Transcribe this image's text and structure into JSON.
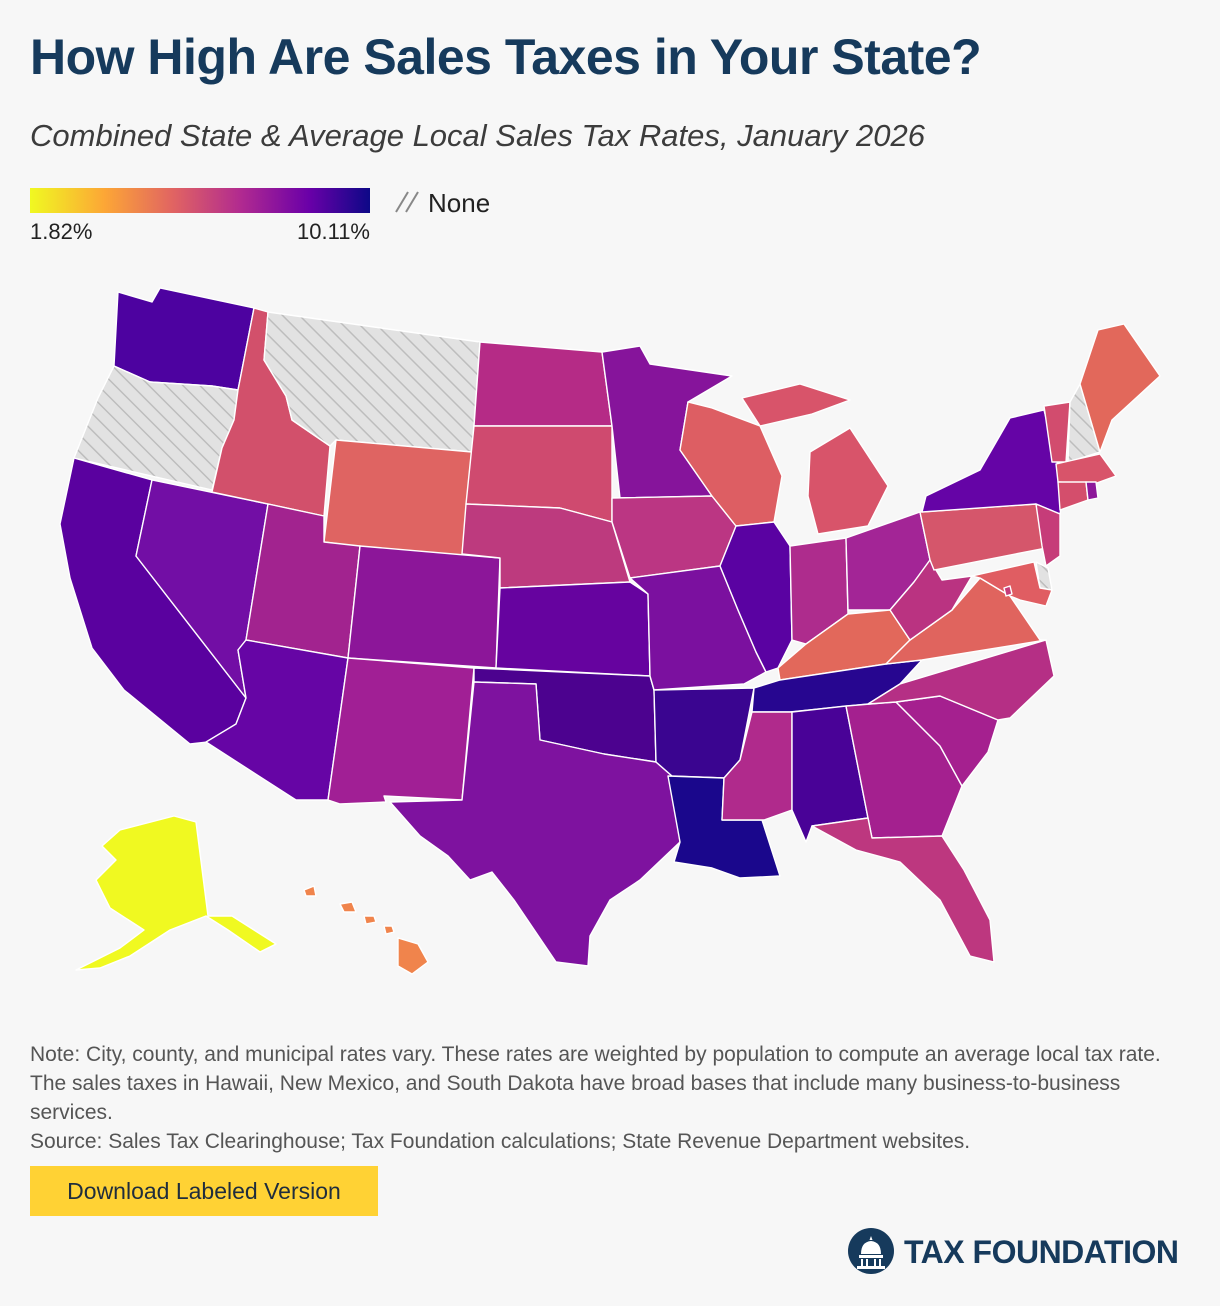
{
  "header": {
    "title": "How High Are Sales Taxes in Your State?",
    "subtitle": "Combined State & Average Local Sales Tax Rates, January 2026"
  },
  "legend": {
    "min_label": "1.82%",
    "max_label": "10.11%",
    "none_label": "None",
    "scale_colors": [
      "#f0f921",
      "#fca636",
      "#e16462",
      "#b12a90",
      "#6a00a8",
      "#0d0887"
    ],
    "none_pattern_color": "#bdbdbd"
  },
  "map": {
    "states": [
      {
        "id": "WA",
        "color": "#4d02a0"
      },
      {
        "id": "OR",
        "color": "none"
      },
      {
        "id": "CA",
        "color": "#5a019f"
      },
      {
        "id": "NV",
        "color": "#720ea5"
      },
      {
        "id": "ID",
        "color": "#d2506b"
      },
      {
        "id": "MT",
        "color": "none"
      },
      {
        "id": "WY",
        "color": "#df6462"
      },
      {
        "id": "UT",
        "color": "#a2238f"
      },
      {
        "id": "AZ",
        "color": "#6605a5"
      },
      {
        "id": "CO",
        "color": "#8c1699"
      },
      {
        "id": "NM",
        "color": "#a11f95"
      },
      {
        "id": "ND",
        "color": "#b52b86"
      },
      {
        "id": "SD",
        "color": "#cf4a6f"
      },
      {
        "id": "NE",
        "color": "#bd3a7e"
      },
      {
        "id": "KS",
        "color": "#66039f"
      },
      {
        "id": "OK",
        "color": "#4c028f"
      },
      {
        "id": "TX",
        "color": "#7e129f"
      },
      {
        "id": "MN",
        "color": "#86149b"
      },
      {
        "id": "IA",
        "color": "#bb3683"
      },
      {
        "id": "MO",
        "color": "#7b109f"
      },
      {
        "id": "AR",
        "color": "#3a0590"
      },
      {
        "id": "LA",
        "color": "#1a078c"
      },
      {
        "id": "WI",
        "color": "#dd5e63"
      },
      {
        "id": "IL",
        "color": "#5a02a2"
      },
      {
        "id": "MI",
        "color": "#d8546a"
      },
      {
        "id": "IN",
        "color": "#ae2c8d"
      },
      {
        "id": "OH",
        "color": "#a32596"
      },
      {
        "id": "KY",
        "color": "#e2685b"
      },
      {
        "id": "TN",
        "color": "#270690"
      },
      {
        "id": "MS",
        "color": "#b02a8c"
      },
      {
        "id": "AL",
        "color": "#490297"
      },
      {
        "id": "GA",
        "color": "#a4208f"
      },
      {
        "id": "FL",
        "color": "#bd377f"
      },
      {
        "id": "SC",
        "color": "#a5208f"
      },
      {
        "id": "NC",
        "color": "#b52f85"
      },
      {
        "id": "VA",
        "color": "#e0645e"
      },
      {
        "id": "WV",
        "color": "#ba3381"
      },
      {
        "id": "PA",
        "color": "#d5566b"
      },
      {
        "id": "NY",
        "color": "#6504a6"
      },
      {
        "id": "VT",
        "color": "#d24c6e"
      },
      {
        "id": "NH",
        "color": "none"
      },
      {
        "id": "ME",
        "color": "#e2685b"
      },
      {
        "id": "MA",
        "color": "#d8546a"
      },
      {
        "id": "CT",
        "color": "#d44e6c"
      },
      {
        "id": "RI",
        "color": "#8d189a"
      },
      {
        "id": "NJ",
        "color": "#c63c79"
      },
      {
        "id": "DE",
        "color": "none"
      },
      {
        "id": "MD",
        "color": "#e05d62"
      },
      {
        "id": "DC",
        "color": "#c63c79"
      },
      {
        "id": "AK",
        "color": "#f0f921"
      },
      {
        "id": "HI",
        "color": "#f0844c"
      }
    ]
  },
  "footer": {
    "note": "Note: City, county, and municipal rates vary. These rates are weighted by population to compute an average local tax rate. The sales taxes in Hawaii, New Mexico, and South Dakota have broad bases that include many business-to-business services.",
    "source": "Source: Sales Tax Clearinghouse; Tax Foundation calculations; State Revenue Department websites.",
    "download_label": "Download Labeled Version",
    "logo_text": "TAX FOUNDATION",
    "brand_color": "#163a5c",
    "button_color": "#ffd234"
  }
}
